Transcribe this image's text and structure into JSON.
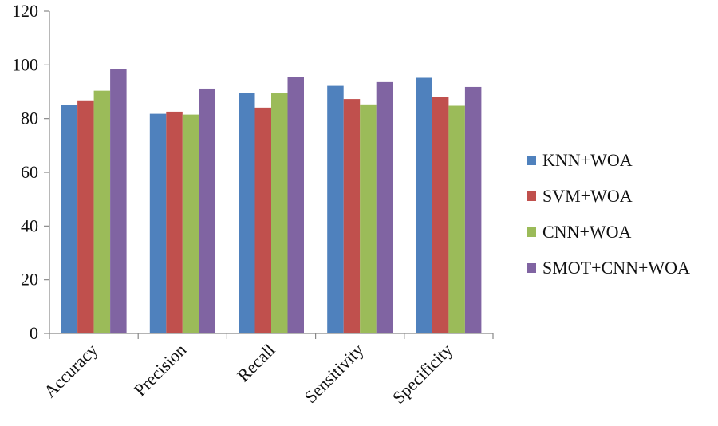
{
  "chart_data": {
    "type": "bar",
    "title": "",
    "xlabel": "",
    "ylabel": "",
    "ylim": [
      0,
      120
    ],
    "yticks": [
      0,
      20,
      40,
      60,
      80,
      100,
      120
    ],
    "grid": false,
    "legend_position": "right",
    "categories": [
      "Accuracy",
      "Precision",
      "Recall",
      "Sensitivity",
      "Specificity"
    ],
    "series": [
      {
        "name": "KNN+WOA",
        "color": "#4f81bd",
        "values": [
          85,
          81.8,
          89.6,
          92.2,
          95.2
        ]
      },
      {
        "name": "SVM+WOA",
        "color": "#c0504d",
        "values": [
          86.8,
          82.6,
          84.1,
          87.3,
          88.1
        ]
      },
      {
        "name": "CNN+WOA",
        "color": "#9bbb59",
        "values": [
          90.4,
          81.5,
          89.4,
          85.3,
          84.8
        ]
      },
      {
        "name": "SMOT+CNN+WOA",
        "color": "#8064a2",
        "values": [
          98.4,
          91.2,
          95.5,
          93.6,
          91.8
        ]
      }
    ]
  }
}
